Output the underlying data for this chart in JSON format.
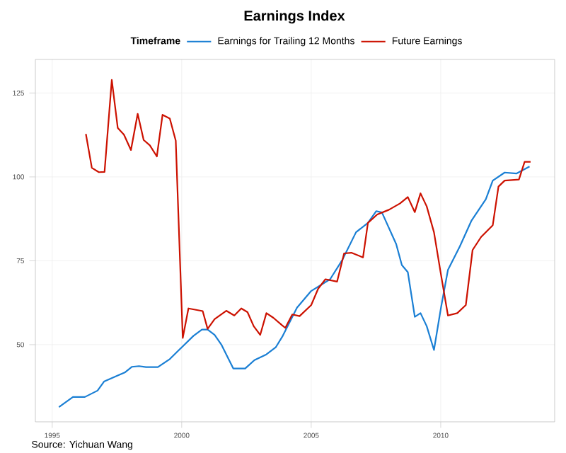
{
  "chart_data": {
    "type": "line",
    "title": "Earnings Index",
    "legend_title": "Timeframe",
    "legend": "top",
    "grid": true,
    "line_style": "solid",
    "marker": "none",
    "xlim": [
      1994.35,
      2014.4
    ],
    "ylim": [
      27,
      135
    ],
    "xticks": [
      1995,
      2000,
      2005,
      2010
    ],
    "yticks": [
      50,
      75,
      100,
      125
    ],
    "annotations": [
      "Source: Yichuan Wang"
    ],
    "series": [
      {
        "name": "Earnings for Trailing 12 Months",
        "color": "#1a7fd4",
        "x": [
          1995.26,
          1995.8,
          1996.26,
          1996.75,
          1997.0,
          1997.53,
          1997.8,
          1998.08,
          1998.35,
          1998.62,
          1999.08,
          1999.54,
          2000.0,
          2000.45,
          2000.78,
          2001.0,
          2001.27,
          2001.54,
          2001.99,
          2002.45,
          2002.81,
          2003.27,
          2003.63,
          2003.9,
          2004.45,
          2005.0,
          2005.73,
          2006.19,
          2006.73,
          2007.19,
          2007.51,
          2007.73,
          2008.28,
          2008.5,
          2008.73,
          2009.0,
          2009.22,
          2009.46,
          2009.74,
          2010.01,
          2010.28,
          2010.74,
          2011.19,
          2011.74,
          2012.01,
          2012.47,
          2012.92,
          2013.43
        ],
        "values": [
          31.4,
          34.4,
          34.4,
          36.3,
          39,
          40.8,
          41.7,
          43.4,
          43.6,
          43.3,
          43.3,
          45.7,
          49.2,
          52.6,
          54.5,
          54.5,
          52.9,
          49.9,
          42.9,
          42.9,
          45.4,
          47.1,
          49.2,
          52.6,
          61,
          66,
          69.5,
          75.1,
          83.5,
          86.3,
          89.8,
          89.4,
          80,
          73.7,
          71.6,
          58.3,
          59.4,
          55.5,
          48.4,
          61,
          72.3,
          79.3,
          87,
          93.3,
          98.9,
          101.3,
          101,
          103.1
        ]
      },
      {
        "name": "Future Earnings",
        "color": "#cc1100",
        "x": [
          1996.3,
          1996.53,
          1996.8,
          1997.02,
          1997.3,
          1997.53,
          1997.77,
          1998.04,
          1998.3,
          1998.53,
          1998.77,
          1999.04,
          1999.26,
          1999.54,
          1999.77,
          2000.04,
          2000.26,
          2000.81,
          2001.0,
          2001.27,
          2001.72,
          2002.03,
          2002.3,
          2002.54,
          2002.78,
          2003.03,
          2003.27,
          2003.54,
          2003.87,
          2004.0,
          2004.27,
          2004.55,
          2005.0,
          2005.27,
          2005.55,
          2006.0,
          2006.27,
          2006.55,
          2007.0,
          2007.19,
          2007.55,
          2008.0,
          2008.43,
          2008.73,
          2009.0,
          2009.22,
          2009.46,
          2009.74,
          2010.01,
          2010.28,
          2010.64,
          2010.97,
          2011.23,
          2011.56,
          2012.01,
          2012.23,
          2012.47,
          2013.02,
          2013.24,
          2013.47
        ],
        "values": [
          112.8,
          102.7,
          101.4,
          101.5,
          128.9,
          114.6,
          112.6,
          108,
          118.8,
          111,
          109.4,
          106.1,
          118.5,
          117.4,
          110.8,
          52,
          60.8,
          60,
          54.7,
          57.6,
          60.1,
          58.7,
          60.8,
          59.7,
          55.5,
          52.9,
          59.4,
          58,
          55.8,
          55,
          59,
          58.5,
          61.8,
          66.7,
          69.5,
          68.8,
          77.2,
          77.4,
          76,
          86.3,
          88.8,
          90.2,
          92.1,
          94,
          89.5,
          95.1,
          91.2,
          83.5,
          70.9,
          58.7,
          59.4,
          61.8,
          78.2,
          82.1,
          85.6,
          97.1,
          98.9,
          99.2,
          104.5,
          104.5
        ]
      }
    ]
  }
}
